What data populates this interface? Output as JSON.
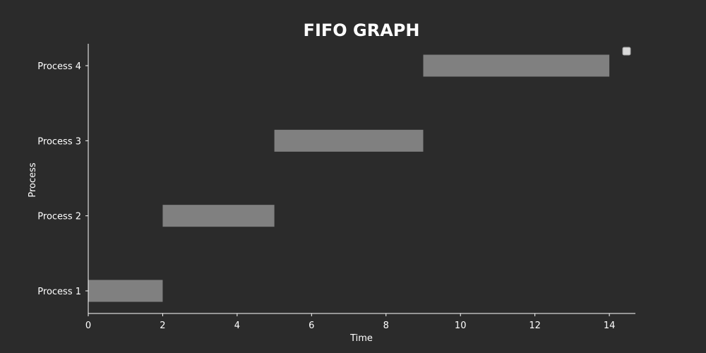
{
  "chart_data": {
    "type": "bar",
    "orientation": "horizontal",
    "title": "FIFO GRAPH",
    "xlabel": "Time",
    "ylabel": "Process",
    "categories": [
      "Process 1",
      "Process 2",
      "Process 3",
      "Process 4"
    ],
    "series": [
      {
        "start": [
          0,
          2,
          5,
          9
        ],
        "end": [
          2,
          5,
          9,
          14
        ],
        "duration": [
          2,
          3,
          4,
          5
        ]
      }
    ],
    "xlim": [
      0,
      14.7
    ],
    "xticks": [
      0,
      2,
      4,
      6,
      8,
      10,
      12,
      14
    ],
    "grid": false,
    "legend": "top-right",
    "colors": {
      "background": "#2b2b2b",
      "bar": "#808080",
      "axis": "#ffffff",
      "text": "#ffffff",
      "legend_box": "#d9d9d9"
    }
  }
}
